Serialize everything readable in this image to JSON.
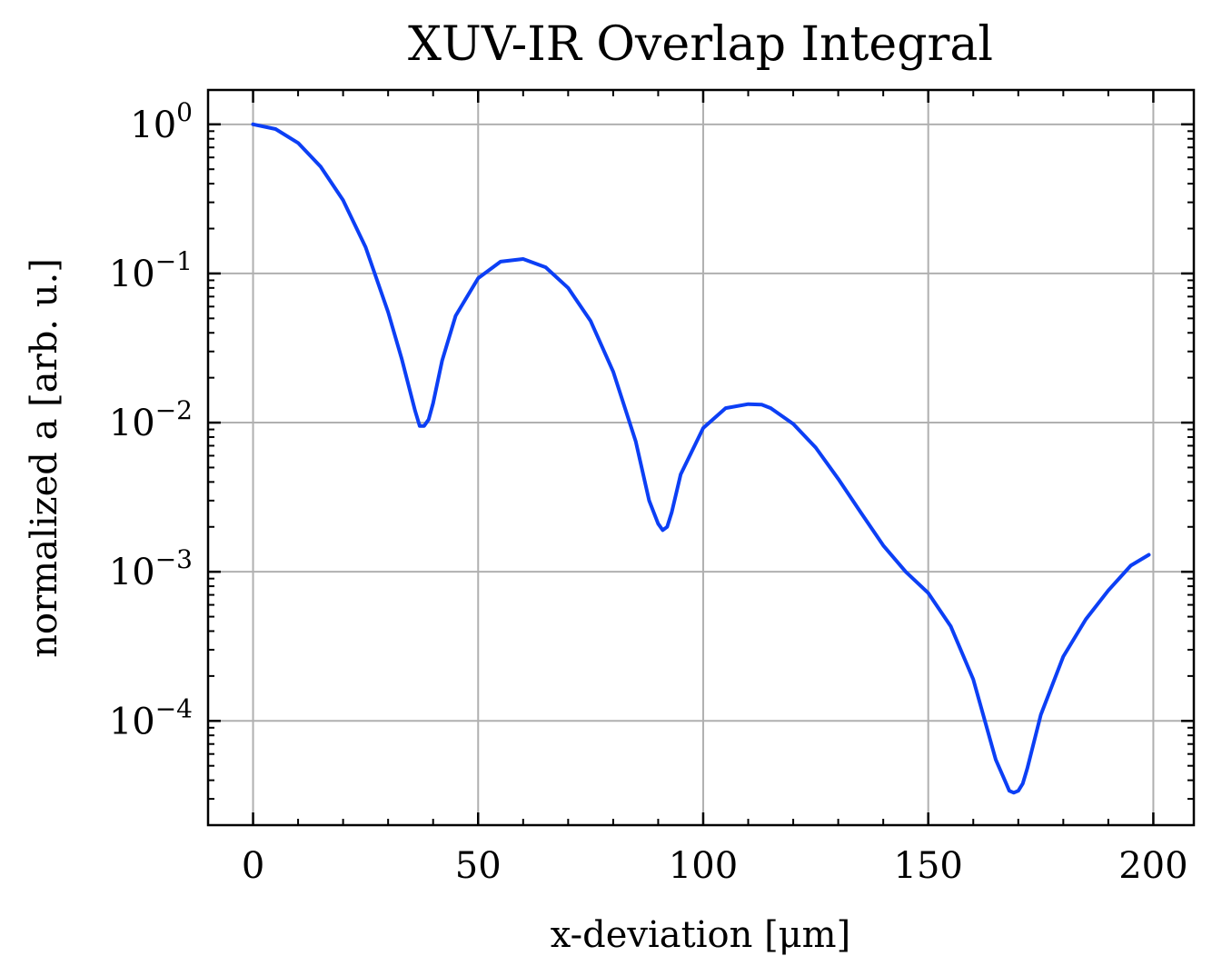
{
  "chart_data": {
    "type": "line",
    "title": "XUV-IR Overlap Integral",
    "xlabel": "x-deviation [μm]",
    "ylabel": "normalized a [arb. u.]",
    "xlim": [
      -10,
      209
    ],
    "ylim": [
      2e-05,
      1.7
    ],
    "yscale": "log",
    "grid": true,
    "x_ticks": [
      0,
      50,
      100,
      150,
      200
    ],
    "x_tick_labels": [
      "0",
      "50",
      "100",
      "150",
      "200"
    ],
    "y_ticks": [
      1,
      0.1,
      0.01,
      0.001,
      0.0001
    ],
    "y_tick_labels": [
      {
        "base": "10",
        "exp": "0"
      },
      {
        "base": "10",
        "exp": "−1"
      },
      {
        "base": "10",
        "exp": "−2"
      },
      {
        "base": "10",
        "exp": "−3"
      },
      {
        "base": "10",
        "exp": "−4"
      }
    ],
    "series": [
      {
        "color": "#0c3ff5",
        "x": [
          0,
          5,
          10,
          15,
          20,
          25,
          30,
          33,
          36,
          37,
          38,
          39,
          40,
          42,
          45,
          50,
          55,
          60,
          65,
          70,
          75,
          80,
          85,
          88,
          90,
          91,
          92,
          93,
          95,
          100,
          105,
          110,
          113,
          115,
          120,
          125,
          130,
          135,
          140,
          145,
          150,
          155,
          160,
          165,
          167,
          168,
          169,
          170,
          171,
          172,
          175,
          180,
          185,
          190,
          195,
          199
        ],
        "y": [
          1.0,
          0.93,
          0.75,
          0.52,
          0.31,
          0.15,
          0.055,
          0.027,
          0.012,
          0.0095,
          0.0095,
          0.0105,
          0.0135,
          0.026,
          0.052,
          0.093,
          0.12,
          0.125,
          0.11,
          0.08,
          0.048,
          0.022,
          0.0075,
          0.003,
          0.0021,
          0.0019,
          0.002,
          0.0025,
          0.0045,
          0.0092,
          0.0125,
          0.0133,
          0.0132,
          0.0125,
          0.0098,
          0.0068,
          0.0042,
          0.0025,
          0.0015,
          0.001,
          0.00072,
          0.00043,
          0.00019,
          5.5e-05,
          4e-05,
          3.4e-05,
          3.3e-05,
          3.4e-05,
          3.8e-05,
          4.8e-05,
          0.00011,
          0.00027,
          0.00048,
          0.00075,
          0.0011,
          0.0013
        ]
      }
    ]
  }
}
